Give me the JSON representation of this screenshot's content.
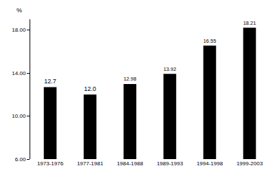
{
  "chart_data": {
    "type": "bar",
    "y_label": "%",
    "categories": [
      "1973-1976",
      "1977-1981",
      "1984-1988",
      "1989-1993",
      "1994-1998",
      "1999-2003"
    ],
    "values": [
      12.7,
      12.0,
      12.98,
      13.92,
      16.55,
      18.21
    ],
    "value_labels": [
      "12.7",
      "12.0",
      "12.98",
      "13.92",
      "16.55",
      "18.21"
    ],
    "color": "#000000",
    "data_labels": true,
    "grid": false,
    "ylim": [
      6,
      19
    ],
    "yticks": [
      {
        "value": 6,
        "label": "6.00"
      },
      {
        "value": 10,
        "label": "10.00"
      },
      {
        "value": 14,
        "label": "14.00"
      },
      {
        "value": 18,
        "label": "18.00"
      }
    ]
  }
}
